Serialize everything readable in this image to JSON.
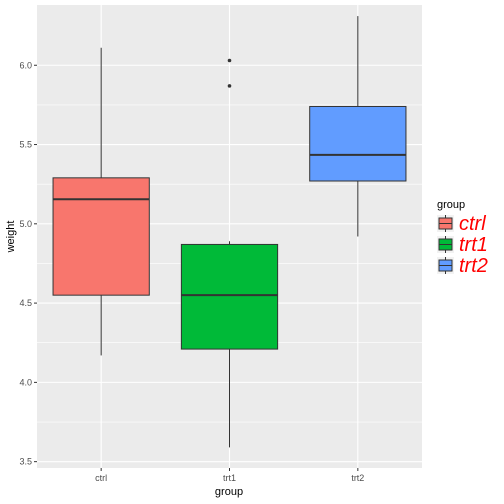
{
  "chart_data": {
    "type": "boxplot",
    "title": "",
    "xlabel": "group",
    "ylabel": "weight",
    "categories": [
      "ctrl",
      "trt1",
      "trt2"
    ],
    "y_ticks": [
      "3.5",
      "4.0",
      "4.5",
      "5.0",
      "5.5",
      "6.0"
    ],
    "ylim": [
      3.46,
      6.38
    ],
    "grid": true,
    "legend": {
      "title": "group",
      "position": "right",
      "entries": [
        "ctrl",
        "trt1",
        "trt2"
      ]
    },
    "series": [
      {
        "name": "ctrl",
        "color": "#F8766D",
        "whisker_low": 4.17,
        "q1": 4.55,
        "median": 5.155,
        "q3": 5.29,
        "whisker_high": 6.11,
        "outliers": []
      },
      {
        "name": "trt1",
        "color": "#00BA38",
        "whisker_low": 3.59,
        "q1": 4.21,
        "median": 4.55,
        "q3": 4.87,
        "whisker_high": 4.89,
        "outliers": [
          5.87,
          6.03
        ]
      },
      {
        "name": "trt2",
        "color": "#619CFF",
        "whisker_low": 4.92,
        "q1": 5.27,
        "median": 5.435,
        "q3": 5.74,
        "whisker_high": 6.31,
        "outliers": []
      }
    ]
  }
}
